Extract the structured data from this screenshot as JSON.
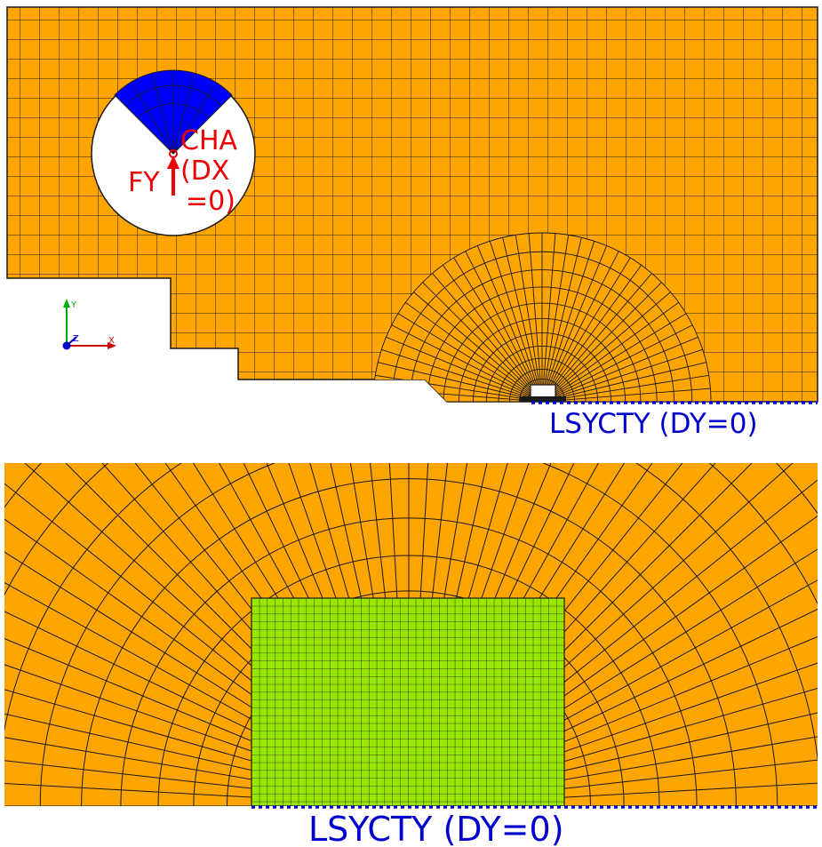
{
  "top_panel": {
    "load_label": "FY",
    "constraint_label_line1": "CHA",
    "constraint_label_line2": "(DX",
    "constraint_label_line3": "=0)",
    "symmetry_label": "LSYCTY (DY=0)",
    "axis_x_label": "X",
    "axis_y_label": "Y",
    "axis_z_label": "Z"
  },
  "bottom_panel": {
    "symmetry_label": "LSYCTY (DY=0)"
  },
  "colors": {
    "mesh_fill": "#ffa500",
    "mesh_lines": "#1a1a1a",
    "contact_zone": "#0000ff",
    "refined_zone": "#99e600",
    "constraint_text": "#ee0000",
    "symmetry_line": "#0000cc",
    "axis_x": "#cc0000",
    "axis_y": "#00aa00",
    "axis_z": "#0000cc"
  }
}
